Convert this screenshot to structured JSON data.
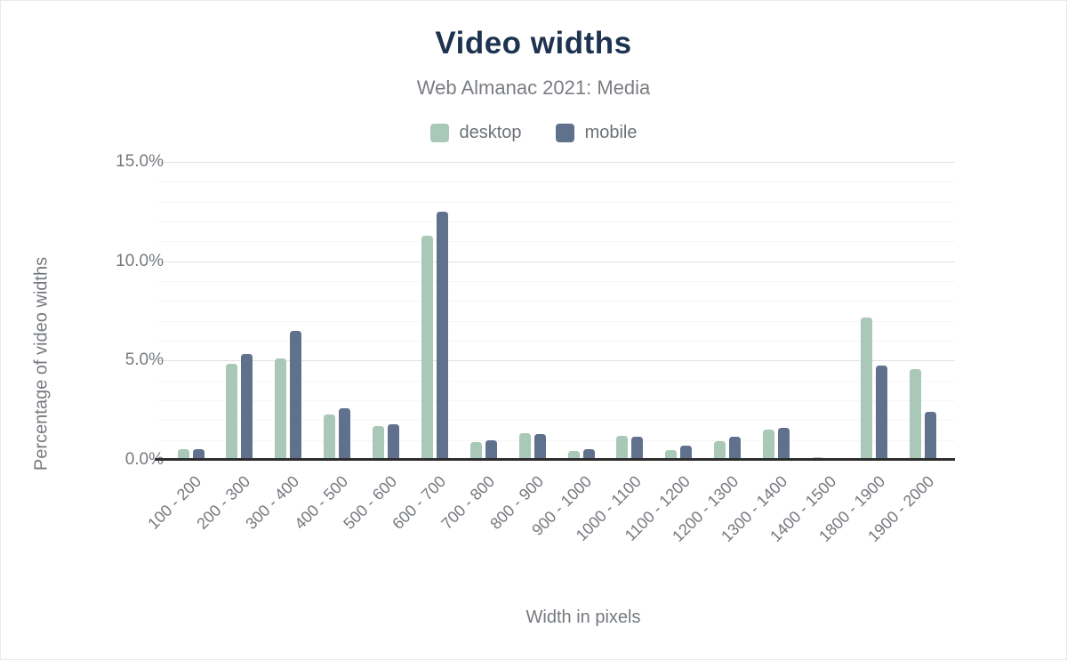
{
  "chart_data": {
    "type": "bar",
    "title": "Video widths",
    "subtitle": "Web Almanac 2021: Media",
    "xlabel": "Width in pixels",
    "ylabel": "Percentage of video widths",
    "ylim": [
      0,
      15
    ],
    "yticks": [
      0,
      5,
      10,
      15
    ],
    "ytick_labels": [
      "0.0%",
      "5.0%",
      "10.0%",
      "15.0%"
    ],
    "grid": "horizontal; faint minor line every 1%, major line every 5%",
    "legend_position": "top-center",
    "categories": [
      "100 - 200",
      "200 - 300",
      "300 - 400",
      "400 - 500",
      "500 - 600",
      "600 - 700",
      "700 - 800",
      "800 - 900",
      "900 - 1000",
      "1000 - 1100",
      "1100 - 1200",
      "1200 - 1300",
      "1300 - 1400",
      "1400 - 1500",
      "1800 - 1900",
      "1900 - 2000"
    ],
    "series": [
      {
        "name": "desktop",
        "color": "#a9c8b7",
        "values": [
          0.55,
          4.85,
          5.1,
          2.3,
          1.7,
          11.3,
          0.9,
          1.35,
          0.45,
          1.2,
          0.5,
          0.95,
          1.5,
          0.15,
          7.15,
          4.55
        ]
      },
      {
        "name": "mobile",
        "color": "#5f718d",
        "values": [
          0.55,
          5.35,
          6.5,
          2.6,
          1.8,
          12.5,
          1.0,
          1.3,
          0.55,
          1.15,
          0.7,
          1.15,
          1.6,
          0,
          4.75,
          2.4
        ]
      }
    ]
  },
  "colors": {
    "title_text": "#1e3350",
    "muted_text": "#75797e",
    "axis_line": "#2d2d2d",
    "grid_major": "#e2e2e2",
    "grid_minor": "#f6f6f6",
    "background": "#ffffff"
  }
}
